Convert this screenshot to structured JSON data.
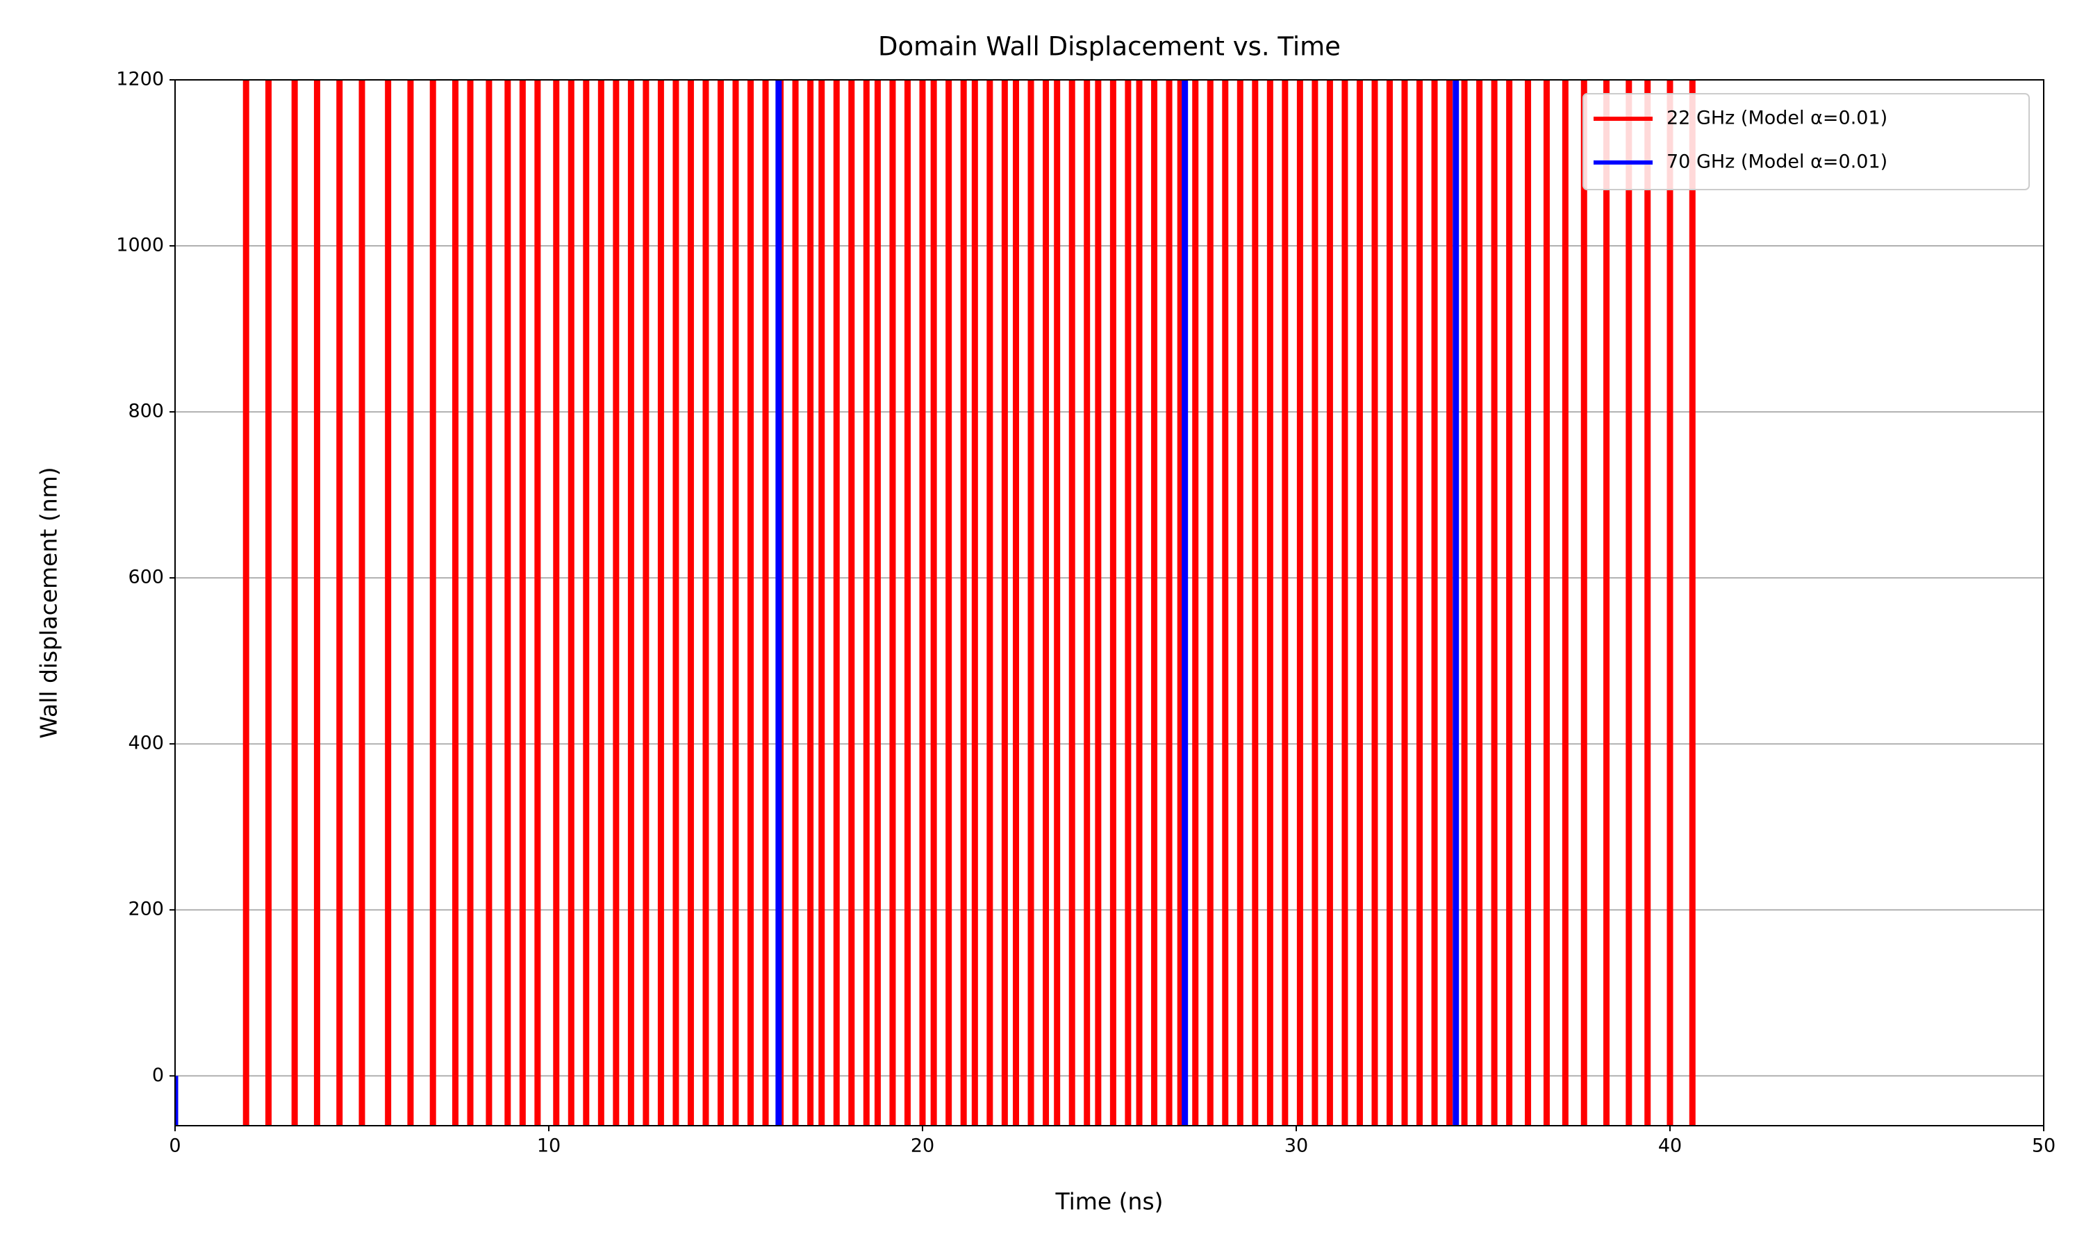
{
  "chart_data": {
    "type": "line",
    "title": "Domain Wall Displacement vs. Time",
    "x_label": "Time (ns)",
    "y_label": "Wall displacement (nm)",
    "xlim": [
      0,
      50
    ],
    "xticks": [
      0,
      10,
      20,
      30,
      40,
      50
    ],
    "ylim": [
      -60,
      1200
    ],
    "yticks": [
      0,
      200,
      400,
      600,
      800,
      1000,
      1200
    ],
    "grid": "y",
    "legend": "upper right",
    "series": [
      {
        "name": "22 GHz (Model α=0.01)",
        "color": "#ff0000",
        "x": [
          1.9,
          1.9,
          null,
          2.5,
          2.5,
          null,
          3.2,
          3.2,
          null,
          3.8,
          3.8,
          null,
          4.4,
          4.4,
          null,
          5.0,
          5.0,
          null,
          5.7,
          5.7,
          null,
          6.3,
          6.3,
          null,
          6.9,
          6.9,
          null,
          7.5,
          7.5,
          null,
          7.9,
          7.9,
          null,
          8.4,
          8.4,
          null,
          8.9,
          8.9,
          null,
          9.3,
          9.3,
          null,
          9.7,
          9.7,
          null,
          10.2,
          10.2,
          null,
          10.6,
          10.6,
          null,
          11.0,
          11.0,
          null,
          11.4,
          11.4,
          null,
          11.8,
          11.8,
          null,
          12.2,
          12.2,
          null,
          12.6,
          12.6,
          null,
          13.0,
          13.0,
          null,
          13.4,
          13.4,
          null,
          13.8,
          13.8,
          null,
          14.2,
          14.2,
          null,
          14.6,
          14.6,
          null,
          15.0,
          15.0,
          null,
          15.4,
          15.4,
          null,
          15.8,
          15.8,
          null,
          16.2,
          16.2,
          null,
          16.6,
          16.6,
          null,
          17.0,
          17.0,
          null,
          17.3,
          17.3,
          null,
          17.7,
          17.7,
          null,
          18.1,
          18.1,
          null,
          18.5,
          18.5,
          null,
          18.8,
          18.8,
          null,
          19.2,
          19.2,
          null,
          19.6,
          19.6,
          null,
          20.0,
          20.0,
          null,
          20.3,
          20.3,
          null,
          20.7,
          20.7,
          null,
          21.1,
          21.1,
          null,
          21.4,
          21.4,
          null,
          21.8,
          21.8,
          null,
          22.2,
          22.2,
          null,
          22.5,
          22.5,
          null,
          22.9,
          22.9,
          null,
          23.3,
          23.3,
          null,
          23.6,
          23.6,
          null,
          24.0,
          24.0,
          null,
          24.4,
          24.4,
          null,
          24.7,
          24.7,
          null,
          25.1,
          25.1,
          null,
          25.5,
          25.5,
          null,
          25.8,
          25.8,
          null,
          26.2,
          26.2,
          null,
          26.6,
          26.6,
          null,
          26.9,
          26.9,
          null,
          27.3,
          27.3,
          null,
          27.7,
          27.7,
          null,
          28.1,
          28.1,
          null,
          28.5,
          28.5,
          null,
          28.9,
          28.9,
          null,
          29.3,
          29.3,
          null,
          29.7,
          29.7,
          null,
          30.1,
          30.1,
          null,
          30.5,
          30.5,
          null,
          30.9,
          30.9,
          null,
          31.3,
          31.3,
          null,
          31.7,
          31.7,
          null,
          32.1,
          32.1,
          null,
          32.5,
          32.5,
          null,
          32.9,
          32.9,
          null,
          33.3,
          33.3,
          null,
          33.7,
          33.7,
          null,
          34.1,
          34.1,
          null,
          34.5,
          34.5,
          null,
          34.9,
          34.9,
          null,
          35.3,
          35.3,
          null,
          35.7,
          35.7,
          null,
          36.2,
          36.2,
          null,
          36.7,
          36.7,
          null,
          37.2,
          37.2,
          null,
          37.7,
          37.7,
          null,
          38.3,
          38.3,
          null,
          38.9,
          38.9,
          null,
          39.4,
          39.4,
          null,
          40.0,
          40.0,
          null,
          40.6,
          40.6
        ],
        "values": [
          -60,
          1200,
          null,
          -60,
          1200,
          null,
          -60,
          1200,
          null,
          -60,
          1200,
          null,
          -60,
          1200,
          null,
          -60,
          1200,
          null,
          -60,
          1200,
          null,
          -60,
          1200,
          null,
          -60,
          1200,
          null,
          -60,
          1200,
          null,
          -60,
          1200,
          null,
          -60,
          1200,
          null,
          -60,
          1200,
          null,
          -60,
          1200,
          null,
          -60,
          1200,
          null,
          -60,
          1200,
          null,
          -60,
          1200,
          null,
          -60,
          1200,
          null,
          -60,
          1200,
          null,
          -60,
          1200,
          null,
          -60,
          1200,
          null,
          -60,
          1200,
          null,
          -60,
          1200,
          null,
          -60,
          1200,
          null,
          -60,
          1200,
          null,
          -60,
          1200,
          null,
          -60,
          1200,
          null,
          -60,
          1200,
          null,
          -60,
          1200,
          null,
          -60,
          1200,
          null,
          -60,
          1200,
          null,
          -60,
          1200,
          null,
          -60,
          1200,
          null,
          -60,
          1200,
          null,
          -60,
          1200,
          null,
          -60,
          1200,
          null,
          -60,
          1200,
          null,
          -60,
          1200,
          null,
          -60,
          1200,
          null,
          -60,
          1200,
          null,
          -60,
          1200,
          null,
          -60,
          1200,
          null,
          -60,
          1200,
          null,
          -60,
          1200,
          null,
          -60,
          1200,
          null,
          -60,
          1200,
          null,
          -60,
          1200,
          null,
          -60,
          1200,
          null,
          -60,
          1200,
          null,
          -60,
          1200,
          null,
          -60,
          1200,
          null,
          -60,
          1200,
          null,
          -60,
          1200,
          null,
          -60,
          1200,
          null,
          -60,
          1200,
          null,
          -60,
          1200,
          null,
          -60,
          1200,
          null,
          -60,
          1200,
          null,
          -60,
          1200,
          null,
          -60,
          1200,
          null,
          -60,
          1200,
          null,
          -60,
          1200,
          null,
          -60,
          1200,
          null,
          -60,
          1200,
          null,
          -60,
          1200,
          null,
          -60,
          1200,
          null,
          -60,
          1200,
          null,
          -60,
          1200,
          null,
          -60,
          1200,
          null,
          -60,
          1200,
          null,
          -60,
          1200,
          null,
          -60,
          1200,
          null,
          -60,
          1200,
          null,
          -60,
          1200,
          null,
          -60,
          1200,
          null,
          -60,
          1200,
          null,
          -60,
          1200,
          null,
          -60,
          1200,
          null,
          -60,
          1200,
          null,
          -60,
          1200,
          null,
          -60,
          1200,
          null,
          -60,
          1200,
          null,
          -60,
          1200,
          null,
          -60,
          1200,
          null,
          -60,
          1200,
          null,
          -60,
          1200,
          null,
          -60,
          1200,
          null,
          -60,
          1200,
          null,
          -60,
          1200,
          null,
          -60,
          1200,
          null,
          -60,
          1200
        ]
      },
      {
        "name": "70 GHz (Model α=0.01)",
        "color": "#0000ff",
        "x": [
          0,
          0,
          null,
          16.15,
          16.15,
          null,
          27.02,
          27.02,
          null,
          34.27,
          34.27
        ],
        "values": [
          0,
          -60,
          null,
          -60,
          1200,
          null,
          -60,
          1200,
          null,
          -60,
          1200
        ]
      }
    ]
  }
}
